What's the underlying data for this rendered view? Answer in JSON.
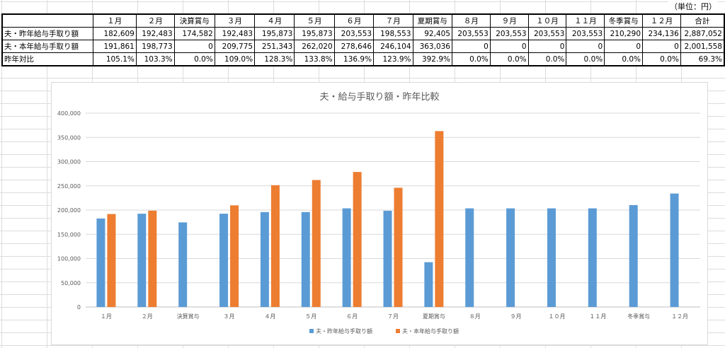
{
  "unit_note": "（単位：円）",
  "table": {
    "headers": [
      "",
      "１月",
      "２月",
      "決算賞与",
      "３月",
      "４月",
      "５月",
      "６月",
      "７月",
      "夏期賞与",
      "８月",
      "９月",
      "１０月",
      "１１月",
      "冬季賞与",
      "１２月",
      "合計"
    ],
    "rows": [
      [
        "夫・昨年給与手取り額",
        "182,609",
        "192,483",
        "174,582",
        "192,483",
        "195,873",
        "195,873",
        "203,553",
        "198,553",
        "92,405",
        "203,553",
        "203,553",
        "203,553",
        "203,553",
        "210,290",
        "234,136",
        "2,887,052"
      ],
      [
        "夫・本年給与手取り額",
        "191,861",
        "198,773",
        "0",
        "209,775",
        "251,343",
        "262,020",
        "278,646",
        "246,104",
        "363,036",
        "0",
        "0",
        "0",
        "0",
        "0",
        "0",
        "2,001,558"
      ],
      [
        "昨年対比",
        "105.1%",
        "103.3%",
        "0.0%",
        "109.0%",
        "128.3%",
        "133.8%",
        "136.9%",
        "123.9%",
        "392.9%",
        "0.0%",
        "0.0%",
        "0.0%",
        "0.0%",
        "0.0%",
        "0.0%",
        "69.3%"
      ]
    ]
  },
  "chart_data": {
    "type": "bar",
    "title": "夫・給与手取り額・昨年比較",
    "categories": [
      "１月",
      "２月",
      "決算賞与",
      "３月",
      "４月",
      "５月",
      "６月",
      "７月",
      "夏期賞与",
      "８月",
      "９月",
      "１０月",
      "１１月",
      "冬季賞与",
      "１２月"
    ],
    "series": [
      {
        "name": "夫・昨年給与手取り額",
        "color": "#5b9bd5",
        "values": [
          182609,
          192483,
          174582,
          192483,
          195873,
          195873,
          203553,
          198553,
          92405,
          203553,
          203553,
          203553,
          203553,
          210290,
          234136
        ]
      },
      {
        "name": "夫・本年給与手取り額",
        "color": "#ed7d31",
        "values": [
          191861,
          198773,
          0,
          209775,
          251343,
          262020,
          278646,
          246104,
          363036,
          0,
          0,
          0,
          0,
          0,
          0
        ]
      }
    ],
    "ylim": [
      0,
      400000
    ],
    "yticks": [
      "0",
      "50,000",
      "100,000",
      "150,000",
      "200,000",
      "250,000",
      "300,000",
      "350,000",
      "400,000"
    ],
    "grid": true,
    "legend_position": "bottom"
  }
}
